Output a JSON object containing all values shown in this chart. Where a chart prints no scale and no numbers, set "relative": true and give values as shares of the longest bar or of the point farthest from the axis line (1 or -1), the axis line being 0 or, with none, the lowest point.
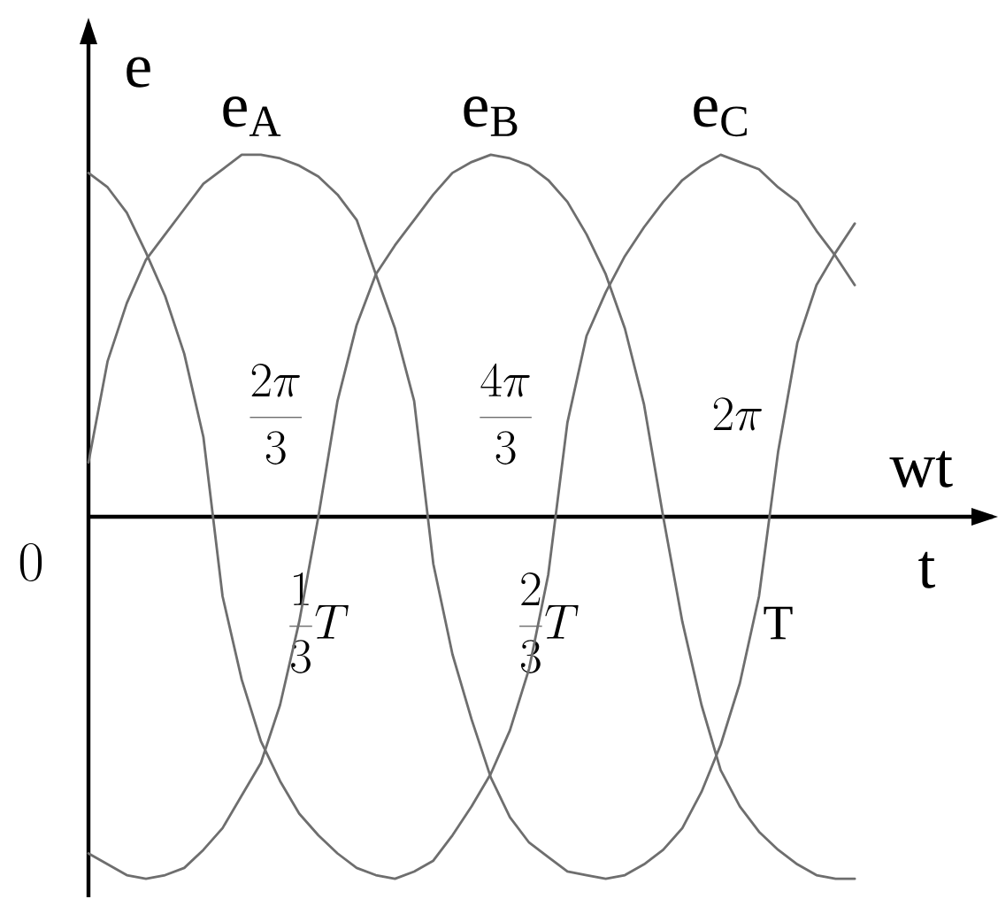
{
  "chart_data": {
    "type": "line",
    "relative": true,
    "ylabel": "e",
    "xlabel": "t",
    "x2label": "wt",
    "categories": [
      null,
      null,
      null,
      null,
      null,
      null,
      null,
      null,
      null,
      null,
      null,
      null,
      "\\frac{1}{3}T",
      null,
      null,
      null,
      null,
      null,
      null,
      null,
      null,
      null,
      null,
      null,
      "\\frac{2}{3}T",
      null,
      null,
      null,
      null,
      null,
      null,
      null,
      null,
      null,
      null,
      null,
      "\\mathrm{T}",
      null,
      null,
      null,
      null
    ],
    "annotations": [
      "0",
      "\\frac{2\\pi}{3}",
      "\\frac{4\\pi}{3}",
      "2\\pi"
    ],
    "series": [
      {
        "name": "e$_{A}$",
        "color": "#6e6e6e",
        "values": [
          0.15,
          0.43,
          0.59,
          0.71,
          0.78,
          0.85,
          0.92,
          0.96,
          1.0,
          1.0,
          0.99,
          0.97,
          0.94,
          0.89,
          0.82,
          0.67,
          0.52,
          0.32,
          -0.13,
          -0.38,
          -0.56,
          -0.72,
          -0.83,
          -0.9,
          -0.94,
          -0.98,
          -0.99,
          -1.0,
          -0.99,
          -0.96,
          -0.92,
          -0.86,
          -0.76,
          -0.63,
          -0.46,
          -0.22,
          0.18,
          0.48,
          0.64,
          0.73,
          0.81
        ]
      },
      {
        "name": "e$_{B}$",
        "color": "#6e6e6e",
        "values": [
          -0.93,
          -0.96,
          -0.99,
          -1.0,
          -0.99,
          -0.97,
          -0.92,
          -0.86,
          -0.77,
          -0.68,
          -0.52,
          -0.29,
          0,
          0.32,
          0.53,
          0.67,
          0.75,
          0.82,
          0.89,
          0.95,
          0.98,
          1.0,
          0.99,
          0.97,
          0.93,
          0.87,
          0.78,
          0.67,
          0.52,
          0.31,
          0,
          -0.29,
          -0.52,
          -0.7,
          -0.8,
          -0.87,
          -0.92,
          -0.96,
          -0.99,
          -1.0,
          -1.0
        ]
      },
      {
        "name": "e$_{C}$",
        "color": "#6e6e6e",
        "values": [
          0.95,
          0.91,
          0.84,
          0.73,
          0.61,
          0.45,
          0.22,
          -0.22,
          -0.45,
          -0.62,
          -0.73,
          -0.82,
          -0.88,
          -0.93,
          -0.97,
          -0.99,
          -1.0,
          -0.98,
          -0.95,
          -0.88,
          -0.8,
          -0.71,
          -0.59,
          -0.42,
          -0.16,
          0.26,
          0.5,
          0.62,
          0.72,
          0.8,
          0.87,
          0.93,
          0.97,
          1.0,
          0.98,
          0.96,
          0.91,
          0.87,
          0.79,
          0.72,
          0.64
        ]
      }
    ]
  }
}
